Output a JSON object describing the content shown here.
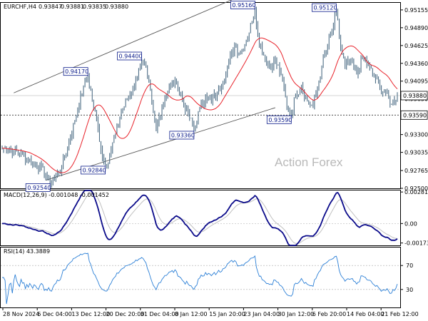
{
  "chart_data": {
    "type": "line",
    "title": "EURCHF,H4",
    "ohlc": {
      "open": "0.93847",
      "high": "0.93881",
      "low": "0.93835",
      "close": "0.93880"
    },
    "watermark": "Action Forex",
    "x_labels": [
      "28 Nov 2024",
      "6 Dec 04:00",
      "13 Dec 12:00",
      "20 Dec 20:00",
      "31 Dec 04:00",
      "8 Jan 12:00",
      "15 Jan 20:00",
      "23 Jan 04:00",
      "30 Jan 12:00",
      "6 Feb 20:00",
      "14 Feb 04:00",
      "21 Feb 12:00"
    ],
    "price_axis": {
      "ticks": [
        "0.95155",
        "0.94890",
        "0.94625",
        "0.94360",
        "0.94095",
        "0.93830",
        "0.93565",
        "0.93300",
        "0.93035",
        "0.92765",
        "0.92500"
      ],
      "ylim": [
        0.925,
        0.9526
      ],
      "current_price": "0.93880",
      "level_line": "0.93590"
    },
    "price_series": {
      "name": "EURCHF",
      "anchors": [
        [
          0,
          0.931
        ],
        [
          8,
          0.9306
        ],
        [
          14,
          0.93
        ],
        [
          20,
          0.929
        ],
        [
          26,
          0.9282
        ],
        [
          30,
          0.9268
        ],
        [
          33,
          0.9258
        ],
        [
          37,
          0.9268
        ],
        [
          41,
          0.9282
        ],
        [
          46,
          0.9318
        ],
        [
          52,
          0.9368
        ],
        [
          56,
          0.9402
        ],
        [
          59,
          0.9417
        ],
        [
          62,
          0.9382
        ],
        [
          66,
          0.934
        ],
        [
          69,
          0.9296
        ],
        [
          71,
          0.9284
        ],
        [
          74,
          0.93
        ],
        [
          78,
          0.933
        ],
        [
          82,
          0.9362
        ],
        [
          86,
          0.9382
        ],
        [
          90,
          0.9398
        ],
        [
          94,
          0.9426
        ],
        [
          96,
          0.944
        ],
        [
          100,
          0.9418
        ],
        [
          104,
          0.9362
        ],
        [
          106,
          0.9335
        ],
        [
          108,
          0.9358
        ],
        [
          112,
          0.9386
        ],
        [
          116,
          0.9402
        ],
        [
          120,
          0.9408
        ],
        [
          124,
          0.938
        ],
        [
          128,
          0.9362
        ],
        [
          132,
          0.9336
        ],
        [
          136,
          0.9368
        ],
        [
          140,
          0.9388
        ],
        [
          144,
          0.938
        ],
        [
          148,
          0.9392
        ],
        [
          152,
          0.941
        ],
        [
          156,
          0.9438
        ],
        [
          160,
          0.9462
        ],
        [
          164,
          0.9452
        ],
        [
          168,
          0.947
        ],
        [
          172,
          0.9498
        ],
        [
          174,
          0.9516
        ],
        [
          176,
          0.9478
        ],
        [
          180,
          0.9448
        ],
        [
          184,
          0.943
        ],
        [
          188,
          0.944
        ],
        [
          192,
          0.942
        ],
        [
          196,
          0.9372
        ],
        [
          199,
          0.9359
        ],
        [
          202,
          0.939
        ],
        [
          206,
          0.9402
        ],
        [
          210,
          0.938
        ],
        [
          214,
          0.9372
        ],
        [
          216,
          0.939
        ],
        [
          220,
          0.9432
        ],
        [
          224,
          0.9462
        ],
        [
          228,
          0.949
        ],
        [
          230,
          0.9512
        ],
        [
          233,
          0.946
        ],
        [
          236,
          0.9432
        ],
        [
          240,
          0.944
        ],
        [
          244,
          0.942
        ],
        [
          248,
          0.9445
        ],
        [
          252,
          0.9432
        ],
        [
          256,
          0.9418
        ],
        [
          260,
          0.94
        ],
        [
          264,
          0.9392
        ],
        [
          268,
          0.9375
        ],
        [
          272,
          0.9388
        ]
      ],
      "annotations": [
        {
          "label": "0.92540",
          "index": 33
        },
        {
          "label": "0.94170",
          "index": 59
        },
        {
          "label": "0.92840",
          "index": 71
        },
        {
          "label": "0.94400",
          "index": 96
        },
        {
          "label": "0.93360",
          "index": 132
        },
        {
          "label": "0.95160",
          "index": 174
        },
        {
          "label": "0.93590",
          "index": 199
        },
        {
          "label": "0.95120",
          "index": 230
        }
      ]
    },
    "channel": {
      "upper": [
        [
          8,
          0.9392
        ],
        [
          190,
          0.956
        ]
      ],
      "lower": [
        [
          30,
          0.9262
        ],
        [
          188,
          0.937
        ]
      ]
    },
    "moving_average": {
      "color": "#e8222a"
    },
    "macd": {
      "title": "MACD(12,26,9) -0.001048 -0.001452",
      "ticks": [
        "0.002813",
        "0.00",
        "-0.001737"
      ],
      "ylim": [
        -0.00195,
        0.00295
      ],
      "main_color": "#0a0a8a",
      "signal_color": "#c0c0c0"
    },
    "rsi": {
      "title": "RSI(14) 43.3889",
      "ticks": [
        "70",
        "30"
      ],
      "ylim": [
        0,
        100
      ],
      "color": "#2b7fd6"
    }
  }
}
